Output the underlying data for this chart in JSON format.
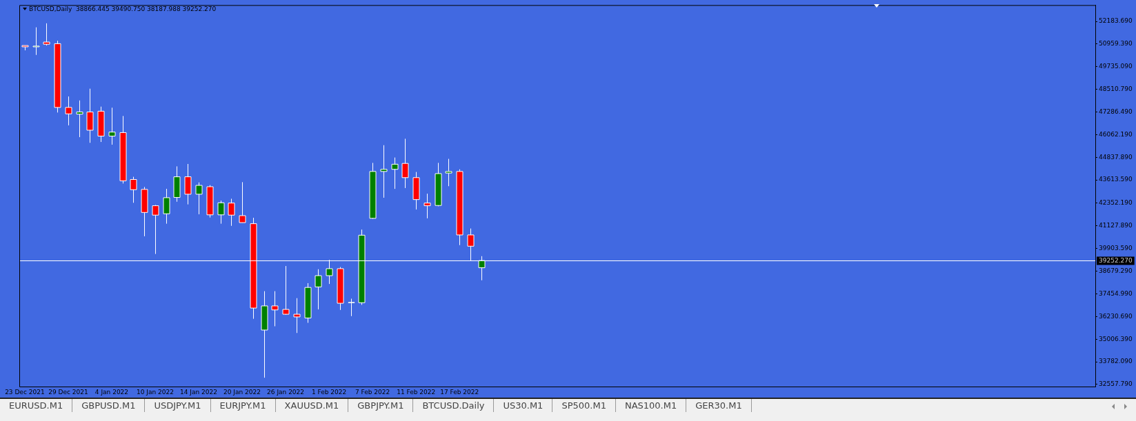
{
  "chart_data": {
    "type": "candlestick",
    "title": "BTCUSD,Daily  38866.445 39490.750 38187.988 39252.270",
    "categories": [
      "23 Dec 2021",
      null,
      null,
      null,
      "29 Dec 2021",
      null,
      null,
      null,
      "4 Jan 2022",
      null,
      null,
      null,
      "10 Jan 2022",
      null,
      null,
      null,
      "14 Jan 2022",
      null,
      null,
      null,
      "20 Jan 2022",
      null,
      null,
      null,
      "26 Jan 2022",
      null,
      null,
      null,
      "1 Feb 2022",
      null,
      null,
      null,
      "7 Feb 2022",
      null,
      null,
      null,
      "11 Feb 2022",
      null,
      null,
      null,
      "17 Feb 2022",
      null,
      null,
      null,
      null,
      null,
      null,
      null,
      null,
      null,
      null,
      null,
      null,
      null,
      null,
      null,
      null,
      null,
      null,
      null,
      null,
      null,
      null,
      null,
      null,
      null,
      null,
      null,
      null,
      null,
      null,
      null,
      null,
      null,
      null,
      null,
      null,
      null,
      null,
      null,
      null,
      null,
      null,
      null,
      null,
      null,
      null,
      null,
      null,
      null,
      null,
      null,
      null,
      null,
      null,
      null,
      null,
      null,
      null
    ],
    "ohlc": [
      [
        50880,
        50880,
        50620,
        50810
      ],
      [
        50810,
        51864,
        50372,
        50850
      ],
      [
        51067,
        52081,
        50879,
        50951
      ],
      [
        50980,
        51139,
        47258,
        47533
      ],
      [
        47533,
        48127,
        46563,
        47186
      ],
      [
        47171,
        47910,
        45926,
        47287
      ],
      [
        47287,
        48547,
        45621,
        46302
      ],
      [
        47330,
        47577,
        45665,
        45984
      ],
      [
        45984,
        47519,
        45520,
        46201
      ],
      [
        46172,
        47070,
        43420,
        43565
      ],
      [
        43637,
        43782,
        42378,
        43087
      ],
      [
        43101,
        43232,
        40567,
        41856
      ],
      [
        42218,
        42261,
        39611,
        41711
      ],
      [
        41784,
        43131,
        41248,
        42653
      ],
      [
        42667,
        44347,
        42435,
        43782
      ],
      [
        43782,
        44477,
        42291,
        42841
      ],
      [
        42841,
        43478,
        41755,
        43319
      ],
      [
        43246,
        43333,
        41581,
        41726
      ],
      [
        41726,
        42493,
        41248,
        42378
      ],
      [
        42363,
        42595,
        41132,
        41711
      ],
      [
        41682,
        43492,
        41300,
        41306
      ],
      [
        41248,
        41566,
        36106,
        36686
      ],
      [
        35498,
        37598,
        32920,
        36802
      ],
      [
        36802,
        37598,
        35701,
        36585
      ],
      [
        36613,
        38959,
        36323,
        36352
      ],
      [
        36352,
        37221,
        35339,
        36207
      ],
      [
        36149,
        38032,
        35889,
        37800
      ],
      [
        37829,
        38785,
        36613,
        38438
      ],
      [
        38438,
        39293,
        37989,
        38815
      ],
      [
        38815,
        38902,
        36584,
        36946
      ],
      [
        36975,
        37192,
        36251,
        36990
      ],
      [
        36975,
        40929,
        36859,
        40625
      ],
      [
        41537,
        44535,
        41508,
        44071
      ],
      [
        44071,
        45491,
        42652,
        44187
      ],
      [
        44187,
        44825,
        43130,
        44462
      ],
      [
        44506,
        45839,
        43174,
        43738
      ],
      [
        43738,
        44043,
        42015,
        42551
      ],
      [
        42363,
        42870,
        41537,
        42218
      ],
      [
        42232,
        44535,
        42189,
        43955
      ],
      [
        43985,
        44752,
        43275,
        44071
      ],
      [
        44071,
        44187,
        40089,
        40640
      ],
      [
        40640,
        40987,
        39249,
        40031
      ],
      [
        38866.445,
        39490.75,
        38187.988,
        39252.27
      ],
      null,
      null,
      null,
      null,
      null,
      null,
      null,
      null,
      null,
      null,
      null,
      null,
      null,
      null,
      null,
      null,
      null,
      null,
      null,
      null,
      null,
      null,
      null,
      null,
      null,
      null,
      null,
      null,
      null,
      null,
      null,
      null,
      null,
      null,
      null,
      null,
      null,
      null,
      null,
      null,
      null,
      null,
      null,
      null,
      null,
      null,
      null,
      null,
      null,
      null,
      null,
      null,
      null,
      null,
      null,
      null
    ],
    "colors": [
      "#ff0000",
      "#008000",
      "#ff0000",
      "#ff0000",
      "#ff0000",
      "#008000",
      "#ff0000",
      "#ff0000",
      "#008000",
      "#ff0000",
      "#ff0000",
      "#ff0000",
      "#ff0000",
      "#008000",
      "#008000",
      "#ff0000",
      "#008000",
      "#ff0000",
      "#008000",
      "#ff0000",
      "#ff0000",
      "#ff0000",
      "#008000",
      "#ff0000",
      "#ff0000",
      "#ff0000",
      "#008000",
      "#008000",
      "#008000",
      "#ff0000",
      "#008000",
      "#008000",
      "#008000",
      "#008000",
      "#008000",
      "#ff0000",
      "#ff0000",
      "#ff0000",
      "#008000",
      "#008000",
      "#ff0000",
      "#ff0000",
      "#008000",
      null,
      null,
      null,
      null,
      null,
      null,
      null,
      null,
      null,
      null,
      null,
      null,
      null,
      null,
      null,
      null,
      null,
      null,
      null,
      null,
      null,
      null,
      null,
      null,
      null,
      null,
      null,
      null,
      null,
      null,
      null,
      null,
      null,
      null,
      null,
      null,
      null,
      null,
      null,
      null,
      null,
      null,
      null,
      null,
      null,
      null,
      null,
      null,
      null,
      null,
      null,
      null,
      null,
      null,
      null,
      null
    ],
    "color": "#ffffff",
    "ylim": [
      32442,
      53066
    ],
    "yticks": [
      {
        "value": 32557.79,
        "label": "32557.790"
      },
      {
        "value": 33782.09,
        "label": "33782.090"
      },
      {
        "value": 35006.39,
        "label": "35006.390"
      },
      {
        "value": 36230.69,
        "label": "36230.690"
      },
      {
        "value": 37454.99,
        "label": "37454.990"
      },
      {
        "value": 38679.29,
        "label": "38679.290"
      },
      {
        "value": 39903.59,
        "label": "39903.590"
      },
      {
        "value": 41127.89,
        "label": "41127.890"
      },
      {
        "value": 42352.19,
        "label": "42352.190"
      },
      {
        "value": 43613.59,
        "label": "43613.590"
      },
      {
        "value": 44837.89,
        "label": "44837.890"
      },
      {
        "value": 46062.19,
        "label": "46062.190"
      },
      {
        "value": 47286.49,
        "label": "47286.490"
      },
      {
        "value": 48510.79,
        "label": "48510.790"
      },
      {
        "value": 49735.09,
        "label": "49735.090"
      },
      {
        "value": 50959.39,
        "label": "50959.390"
      },
      {
        "value": 52183.69,
        "label": "52183.690"
      }
    ],
    "ref_lines": [
      {
        "axis": "y",
        "value": 39252.27,
        "label": "39252.270",
        "color": "#ffffff"
      }
    ],
    "annotations": [
      "EURUSD.M1",
      "GBPUSD.M1",
      "USDJPY.M1",
      "EURJPY.M1",
      "XAUUSD.M1",
      "GBPJPY.M1",
      "BTCUSD.Daily",
      "US30.M1",
      "SP500.M1",
      "NAS100.M1",
      "GER30.M1"
    ]
  }
}
